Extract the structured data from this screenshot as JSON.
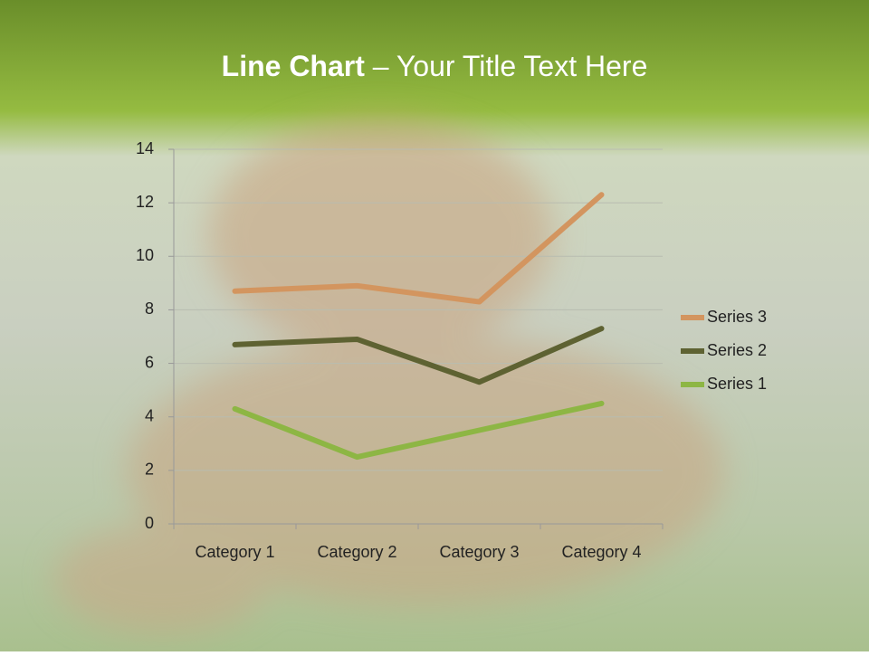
{
  "chart_data": {
    "type": "line",
    "stacked": true,
    "title": [
      "Line Chart",
      " – Your Title Text Here"
    ],
    "categories": [
      "Category 1",
      "Category 2",
      "Category 3",
      "Category 4"
    ],
    "series": [
      {
        "name": "Series 1",
        "color": "#8db644",
        "values": [
          4.3,
          2.5,
          3.5,
          4.5
        ]
      },
      {
        "name": "Series 2",
        "color": "#5e6232",
        "values": [
          2.4,
          4.4,
          1.8,
          2.8
        ]
      },
      {
        "name": "Series 3",
        "color": "#d3955f",
        "values": [
          2,
          2,
          3,
          5
        ]
      }
    ],
    "ylim": [
      0,
      14
    ],
    "yticks": [
      0,
      2,
      4,
      6,
      8,
      10,
      12,
      14
    ],
    "grid": true,
    "legend": "right"
  }
}
